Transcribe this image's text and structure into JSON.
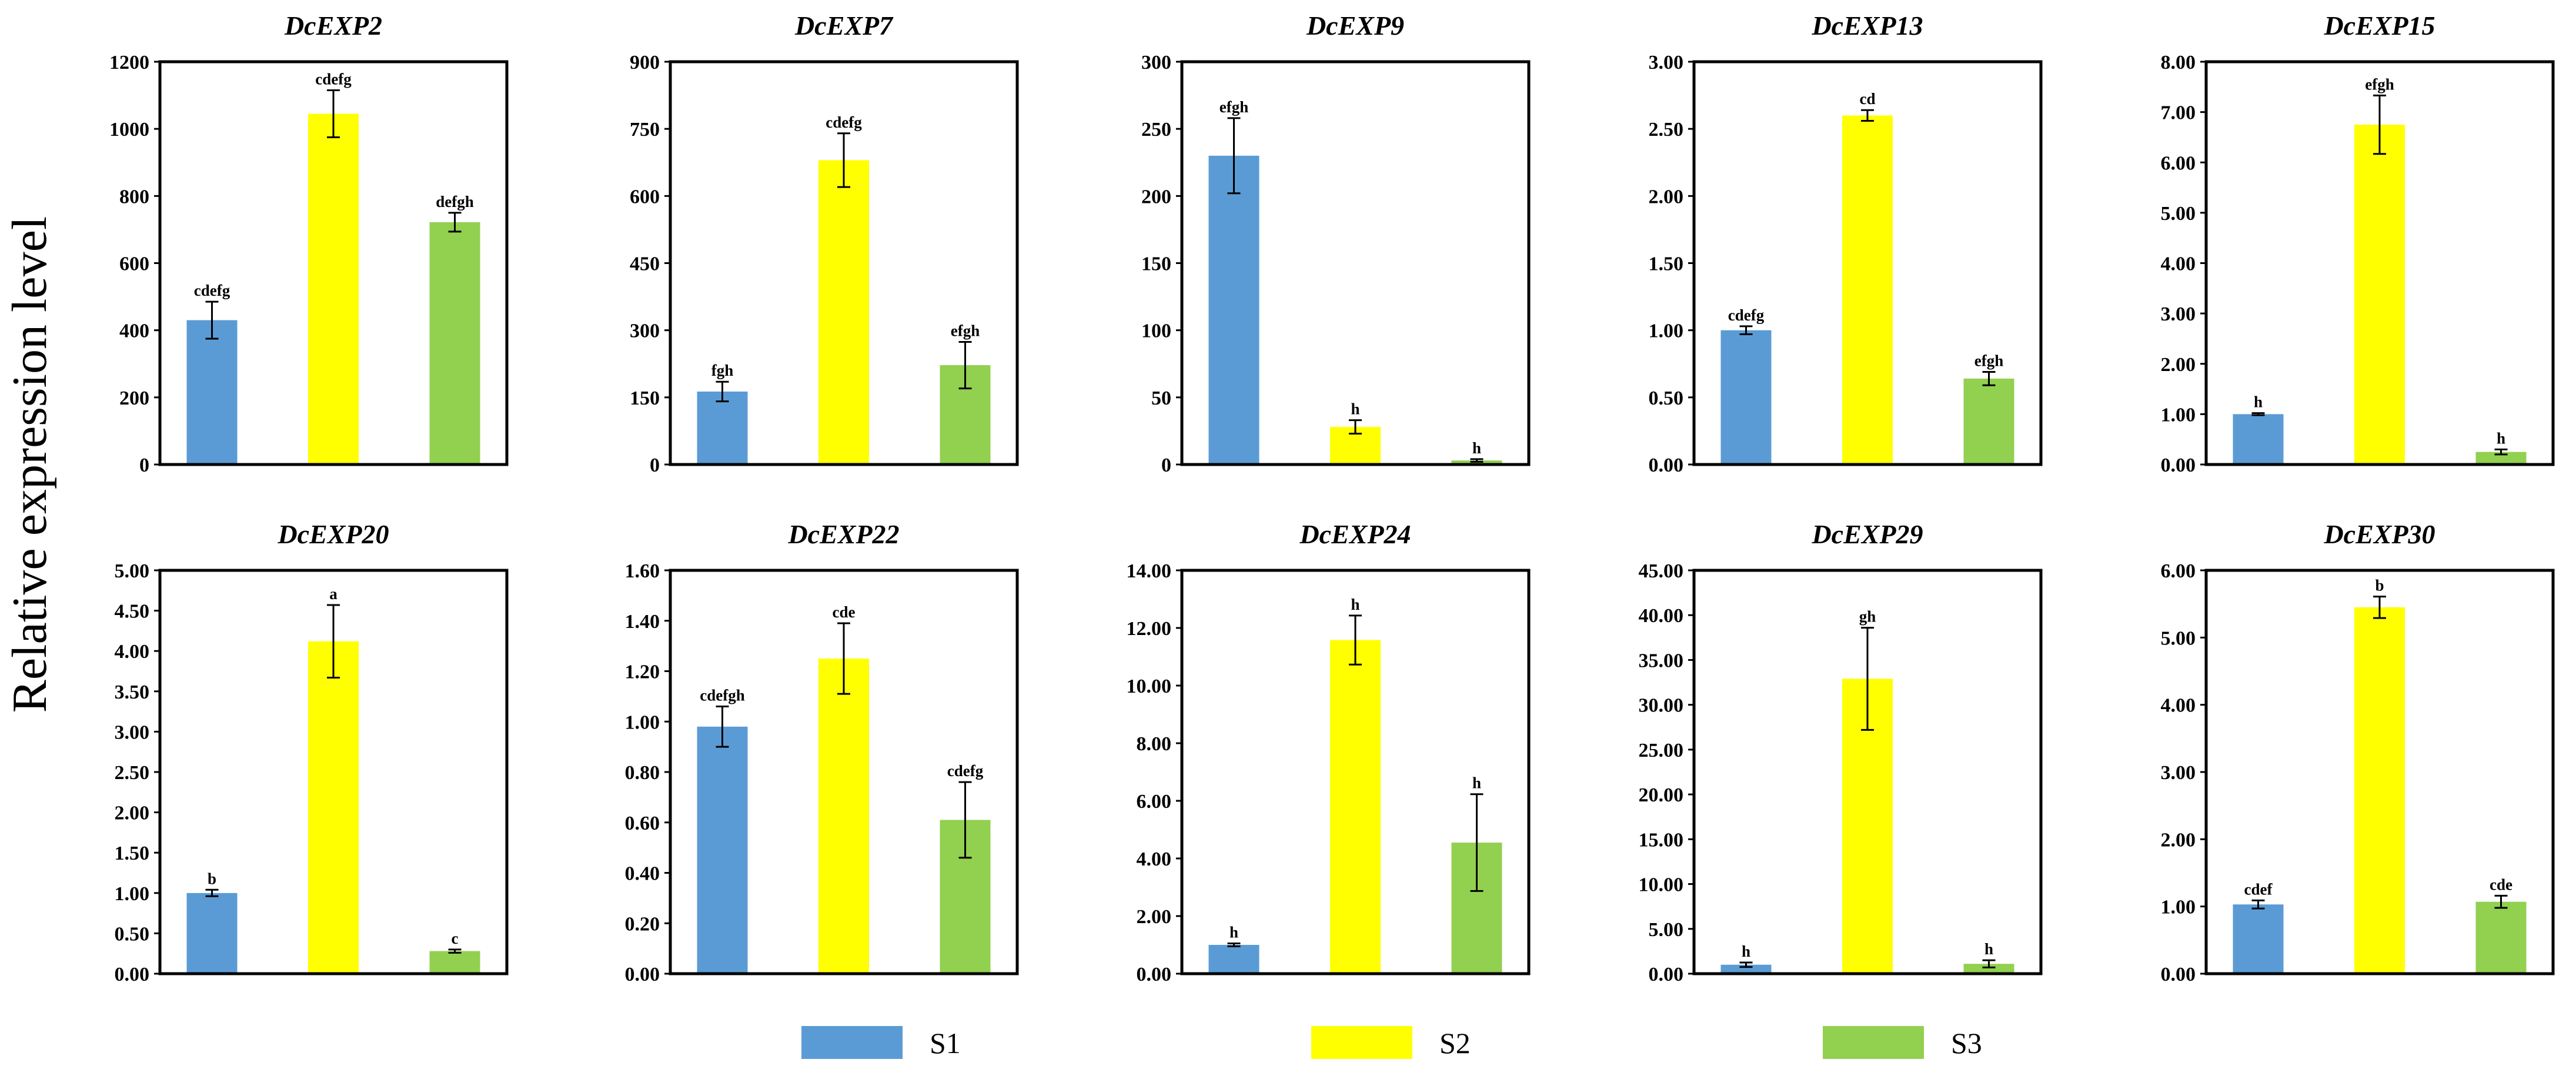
{
  "figure": {
    "ylabel": "Relative expression level",
    "legend": [
      {
        "name": "S1",
        "color": "#5b9bd5"
      },
      {
        "name": "S2",
        "color": "#ffff00"
      },
      {
        "name": "S3",
        "color": "#92d050"
      }
    ]
  },
  "chart_data": [
    {
      "type": "bar",
      "title": "DcEXP2",
      "categories": [
        "S1",
        "S2",
        "S3"
      ],
      "values": [
        430,
        1045,
        722
      ],
      "errors": [
        55,
        70,
        28
      ],
      "labels": [
        "cdefg",
        "cdefg",
        "defgh"
      ],
      "ylim": [
        0,
        1200
      ],
      "ticks": [
        0,
        200,
        400,
        600,
        800,
        1000,
        1200
      ],
      "tick_labels": [
        "0",
        "200",
        "400",
        "600",
        "800",
        "1000",
        "1200"
      ]
    },
    {
      "type": "bar",
      "title": "DcEXP7",
      "categories": [
        "S1",
        "S2",
        "S3"
      ],
      "values": [
        163,
        680,
        222
      ],
      "errors": [
        22,
        60,
        52
      ],
      "labels": [
        "fgh",
        "cdefg",
        "efgh"
      ],
      "ylim": [
        0,
        900
      ],
      "ticks": [
        0,
        150,
        300,
        450,
        600,
        750,
        900
      ],
      "tick_labels": [
        "0",
        "150",
        "300",
        "450",
        "600",
        "750",
        "900"
      ]
    },
    {
      "type": "bar",
      "title": "DcEXP9",
      "categories": [
        "S1",
        "S2",
        "S3"
      ],
      "values": [
        230,
        28,
        3
      ],
      "errors": [
        28,
        5,
        1
      ],
      "labels": [
        "efgh",
        "h",
        "h"
      ],
      "ylim": [
        0,
        300
      ],
      "ticks": [
        0,
        50,
        100,
        150,
        200,
        250,
        300
      ],
      "tick_labels": [
        "0",
        "50",
        "100",
        "150",
        "200",
        "250",
        "300"
      ]
    },
    {
      "type": "bar",
      "title": "DcEXP13",
      "categories": [
        "S1",
        "S2",
        "S3"
      ],
      "values": [
        1.0,
        2.6,
        0.64
      ],
      "errors": [
        0.03,
        0.04,
        0.05
      ],
      "labels": [
        "cdefg",
        "cd",
        "efgh"
      ],
      "ylim": [
        0,
        3
      ],
      "ticks": [
        0,
        0.5,
        1,
        1.5,
        2,
        2.5,
        3
      ],
      "tick_labels": [
        "0.00",
        "0.50",
        "1.00",
        "1.50",
        "2.00",
        "2.50",
        "3.00"
      ]
    },
    {
      "type": "bar",
      "title": "DcEXP15",
      "categories": [
        "S1",
        "S2",
        "S3"
      ],
      "values": [
        1.0,
        6.75,
        0.25
      ],
      "errors": [
        0.02,
        0.58,
        0.05
      ],
      "labels": [
        "h",
        "efgh",
        "h"
      ],
      "ylim": [
        0,
        8
      ],
      "ticks": [
        0,
        1,
        2,
        3,
        4,
        5,
        6,
        7,
        8
      ],
      "tick_labels": [
        "0.00",
        "1.00",
        "2.00",
        "3.00",
        "4.00",
        "5.00",
        "6.00",
        "7.00",
        "8.00"
      ]
    },
    {
      "type": "bar",
      "title": "DcEXP20",
      "categories": [
        "S1",
        "S2",
        "S3"
      ],
      "values": [
        1.0,
        4.12,
        0.28
      ],
      "errors": [
        0.04,
        0.45,
        0.02
      ],
      "labels": [
        "b",
        "a",
        "c"
      ],
      "ylim": [
        0,
        5
      ],
      "ticks": [
        0,
        0.5,
        1,
        1.5,
        2,
        2.5,
        3,
        3.5,
        4,
        4.5,
        5
      ],
      "tick_labels": [
        "0.00",
        "0.50",
        "1.00",
        "1.50",
        "2.00",
        "2.50",
        "3.00",
        "3.50",
        "4.00",
        "4.50",
        "5.00"
      ]
    },
    {
      "type": "bar",
      "title": "DcEXP22",
      "categories": [
        "S1",
        "S2",
        "S3"
      ],
      "values": [
        0.98,
        1.25,
        0.61
      ],
      "errors": [
        0.08,
        0.14,
        0.15
      ],
      "labels": [
        "cdefgh",
        "cde",
        "cdefg"
      ],
      "ylim": [
        0,
        1.6
      ],
      "ticks": [
        0,
        0.2,
        0.4,
        0.6,
        0.8,
        1,
        1.2,
        1.4,
        1.6
      ],
      "tick_labels": [
        "0.00",
        "0.20",
        "0.40",
        "0.60",
        "0.80",
        "1.00",
        "1.20",
        "1.40",
        "1.60"
      ]
    },
    {
      "type": "bar",
      "title": "DcEXP24",
      "categories": [
        "S1",
        "S2",
        "S3"
      ],
      "values": [
        1.0,
        11.58,
        4.55
      ],
      "errors": [
        0.05,
        0.85,
        1.68
      ],
      "labels": [
        "h",
        "h",
        "h"
      ],
      "ylim": [
        0,
        14
      ],
      "ticks": [
        0,
        2,
        4,
        6,
        8,
        10,
        12,
        14
      ],
      "tick_labels": [
        "0.00",
        "2.00",
        "4.00",
        "6.00",
        "8.00",
        "10.00",
        "12.00",
        "14.00"
      ]
    },
    {
      "type": "bar",
      "title": "DcEXP29",
      "categories": [
        "S1",
        "S2",
        "S3"
      ],
      "values": [
        1.0,
        32.9,
        1.1
      ],
      "errors": [
        0.25,
        5.7,
        0.4
      ],
      "labels": [
        "h",
        "gh",
        "h"
      ],
      "ylim": [
        0,
        45
      ],
      "ticks": [
        0,
        5,
        10,
        15,
        20,
        25,
        30,
        35,
        40,
        45
      ],
      "tick_labels": [
        "0.00",
        "5.00",
        "10.00",
        "15.00",
        "20.00",
        "25.00",
        "30.00",
        "35.00",
        "40.00",
        "45.00"
      ]
    },
    {
      "type": "bar",
      "title": "DcEXP30",
      "categories": [
        "S1",
        "S2",
        "S3"
      ],
      "values": [
        1.03,
        5.45,
        1.07
      ],
      "errors": [
        0.06,
        0.16,
        0.09
      ],
      "labels": [
        "cdef",
        "b",
        "cde"
      ],
      "ylim": [
        0,
        6
      ],
      "ticks": [
        0,
        1,
        2,
        3,
        4,
        5,
        6
      ],
      "tick_labels": [
        "0.00",
        "1.00",
        "2.00",
        "3.00",
        "4.00",
        "5.00",
        "6.00"
      ]
    }
  ]
}
